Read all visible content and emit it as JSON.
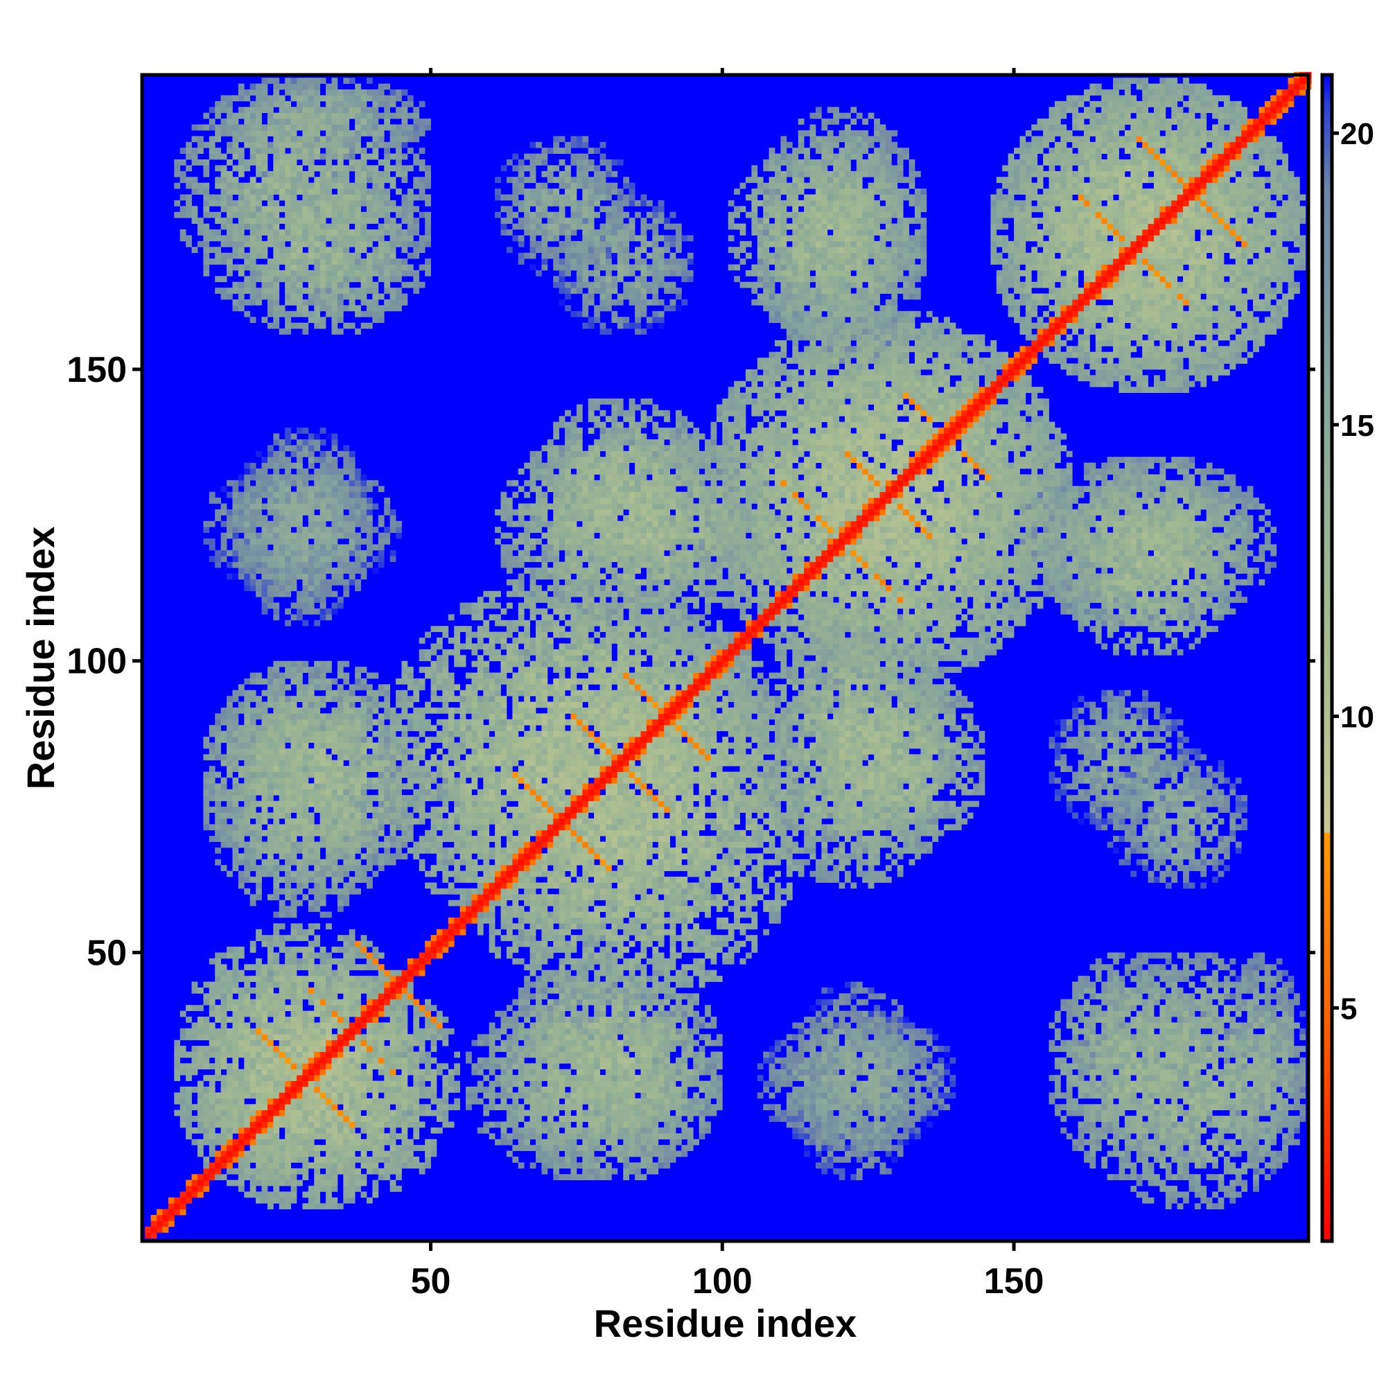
{
  "chart_data": {
    "type": "heatmap",
    "title": "",
    "xlabel": "Residue index",
    "ylabel": "Residue index",
    "n_residues": 200,
    "xlim": [
      1,
      200
    ],
    "ylim": [
      1,
      200
    ],
    "x_ticks": [
      50,
      100,
      150
    ],
    "y_ticks": [
      50,
      100,
      150
    ],
    "x_tick_labels": [
      "50",
      "100",
      "150"
    ],
    "y_tick_labels": [
      "50",
      "100",
      "150"
    ],
    "colorbar": {
      "range": [
        1,
        21
      ],
      "ticks": [
        5,
        10,
        15,
        20
      ],
      "tick_labels": [
        "5",
        "10",
        "15",
        "20"
      ],
      "stops": [
        {
          "value": 1,
          "color": "#ff0000"
        },
        {
          "value": 3,
          "color": "#ff3300"
        },
        {
          "value": 5,
          "color": "#ff6600"
        },
        {
          "value": 8,
          "color": "#ff9900"
        },
        {
          "value": 8.01,
          "color": "#c8c896"
        },
        {
          "value": 11,
          "color": "#a8bc90"
        },
        {
          "value": 15,
          "color": "#8aa89a"
        },
        {
          "value": 19,
          "color": "#6f86a6"
        },
        {
          "value": 20.5,
          "color": "#2b3fd8"
        },
        {
          "value": 21,
          "color": "#0000ff"
        }
      ]
    },
    "background_value": 21,
    "background_color": "#0000ff",
    "diagonal_color": "#ff0000",
    "contact_color": "#ff9900",
    "mid_color": "#a8bc90",
    "features": [
      {
        "kind": "diagonal",
        "from": 1,
        "to": 200,
        "value": 1.5
      },
      {
        "kind": "cluster",
        "x": [
          5,
          50
        ],
        "y": [
          5,
          55
        ],
        "value": 11
      },
      {
        "kind": "cluster",
        "x": [
          40,
          110
        ],
        "y": [
          50,
          115
        ],
        "value": 11
      },
      {
        "kind": "cluster",
        "x": [
          95,
          160
        ],
        "y": [
          95,
          160
        ],
        "value": 11
      },
      {
        "kind": "cluster",
        "x": [
          145,
          200
        ],
        "y": [
          145,
          200
        ],
        "value": 11
      },
      {
        "kind": "cluster",
        "x": [
          10,
          50
        ],
        "y": [
          60,
          100
        ],
        "value": 12
      },
      {
        "kind": "cluster",
        "x": [
          55,
          100
        ],
        "y": [
          10,
          45
        ],
        "value": 13
      },
      {
        "kind": "cluster",
        "x": [
          110,
          145
        ],
        "y": [
          65,
          100
        ],
        "value": 12
      },
      {
        "kind": "cluster",
        "x": [
          60,
          110
        ],
        "y": [
          105,
          140
        ],
        "value": 12
      },
      {
        "kind": "cluster",
        "x": [
          155,
          190
        ],
        "y": [
          100,
          135
        ],
        "value": 12
      },
      {
        "kind": "cluster",
        "x": [
          105,
          135
        ],
        "y": [
          150,
          195
        ],
        "value": 13
      },
      {
        "kind": "cluster",
        "x": [
          5,
          50
        ],
        "y": [
          160,
          200
        ],
        "value": 13
      },
      {
        "kind": "cluster",
        "x": [
          10,
          45
        ],
        "y": [
          110,
          135
        ],
        "value": 15
      },
      {
        "kind": "cluster",
        "x": [
          60,
          85
        ],
        "y": [
          165,
          190
        ],
        "value": 15
      },
      {
        "kind": "cluster",
        "x": [
          105,
          140
        ],
        "y": [
          15,
          40
        ],
        "value": 15
      },
      {
        "kind": "cluster",
        "x": [
          155,
          180
        ],
        "y": [
          70,
          95
        ],
        "value": 15
      },
      {
        "kind": "cluster",
        "x": [
          155,
          185
        ],
        "y": [
          10,
          50
        ],
        "value": 13
      },
      {
        "kind": "cluster",
        "x": [
          185,
          200
        ],
        "y": [
          10,
          50
        ],
        "value": 14
      },
      {
        "kind": "cross",
        "center": [
          28,
          28
        ],
        "half_len": 8,
        "value": 6
      },
      {
        "kind": "cross",
        "center": [
          36,
          36
        ],
        "half_len": 7,
        "value": 6
      },
      {
        "kind": "cross",
        "center": [
          44,
          44
        ],
        "half_len": 7,
        "value": 6
      },
      {
        "kind": "cross",
        "center": [
          72,
          72
        ],
        "half_len": 8,
        "value": 6
      },
      {
        "kind": "cross",
        "center": [
          82,
          82
        ],
        "half_len": 8,
        "value": 6
      },
      {
        "kind": "cross",
        "center": [
          90,
          90
        ],
        "half_len": 7,
        "value": 6
      },
      {
        "kind": "cross",
        "center": [
          120,
          120
        ],
        "half_len": 10,
        "value": 6
      },
      {
        "kind": "cross",
        "center": [
          128,
          128
        ],
        "half_len": 8,
        "value": 6
      },
      {
        "kind": "cross",
        "center": [
          138,
          138
        ],
        "half_len": 7,
        "value": 6
      },
      {
        "kind": "cross",
        "center": [
          170,
          170
        ],
        "half_len": 9,
        "value": 6
      },
      {
        "kind": "cross",
        "center": [
          180,
          180
        ],
        "half_len": 9,
        "value": 6
      }
    ]
  }
}
